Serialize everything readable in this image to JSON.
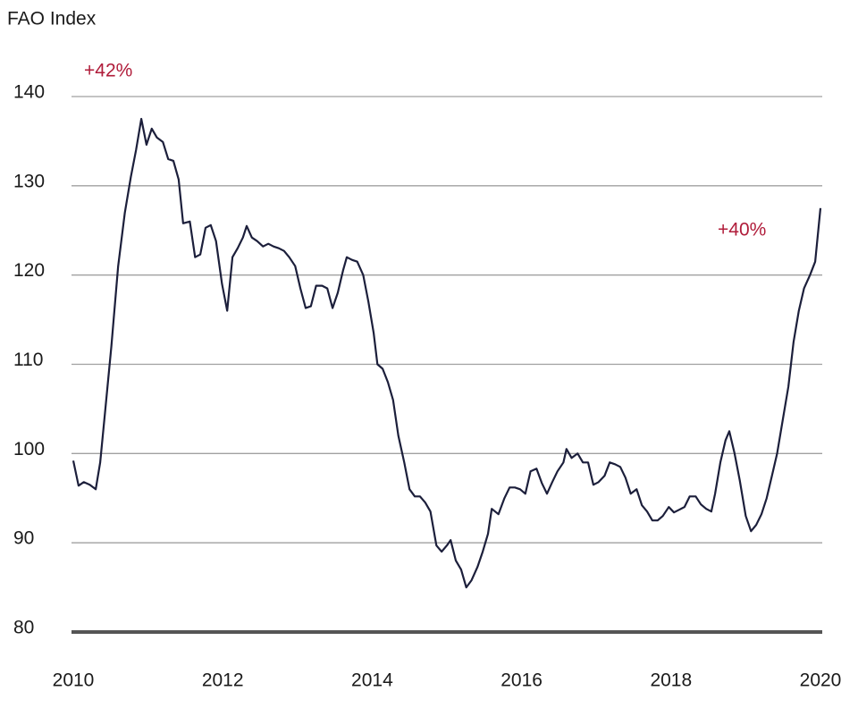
{
  "chart_data": {
    "type": "line",
    "y_axis_label": "FAO Index",
    "annotations": [
      "+42%",
      "+40%"
    ],
    "xlim": [
      2010,
      2020
    ],
    "xticks": [
      2010,
      2012,
      2014,
      2016,
      2018,
      2020
    ],
    "ylim": [
      80,
      140
    ],
    "yticks": [
      80,
      90,
      100,
      110,
      120,
      130,
      140
    ],
    "grid": true,
    "x": [
      2010.0,
      2010.07,
      2010.14,
      2010.22,
      2010.3,
      2010.36,
      2010.43,
      2010.51,
      2010.6,
      2010.69,
      2010.77,
      2010.84,
      2010.91,
      2010.98,
      2011.05,
      2011.12,
      2011.2,
      2011.27,
      2011.34,
      2011.41,
      2011.47,
      2011.56,
      2011.63,
      2011.7,
      2011.77,
      2011.84,
      2011.91,
      2011.99,
      2012.06,
      2012.13,
      2012.2,
      2012.27,
      2012.32,
      2012.39,
      2012.46,
      2012.54,
      2012.61,
      2012.68,
      2012.75,
      2012.82,
      2012.89,
      2012.97,
      2013.04,
      2013.11,
      2013.18,
      2013.25,
      2013.33,
      2013.4,
      2013.47,
      2013.54,
      2013.61,
      2013.66,
      2013.73,
      2013.8,
      2013.88,
      2013.95,
      2014.02,
      2014.07,
      2014.14,
      2014.21,
      2014.28,
      2014.35,
      2014.43,
      2014.5,
      2014.57,
      2014.64,
      2014.71,
      2014.78,
      2014.86,
      2014.93,
      2015.0,
      2015.05,
      2015.12,
      2015.19,
      2015.26,
      2015.33,
      2015.41,
      2015.48,
      2015.55,
      2015.6,
      2015.69,
      2015.77,
      2015.84,
      2015.91,
      2015.98,
      2016.05,
      2016.12,
      2016.2,
      2016.27,
      2016.34,
      2016.41,
      2016.48,
      2016.56,
      2016.6,
      2016.67,
      2016.75,
      2016.82,
      2016.89,
      2016.96,
      2017.03,
      2017.11,
      2017.18,
      2017.25,
      2017.32,
      2017.39,
      2017.46,
      2017.54,
      2017.61,
      2017.68,
      2017.75,
      2017.82,
      2017.89,
      2017.97,
      2018.04,
      2018.11,
      2018.18,
      2018.25,
      2018.33,
      2018.4,
      2018.47,
      2018.54,
      2018.59,
      2018.66,
      2018.73,
      2018.78,
      2018.85,
      2018.92,
      2019.0,
      2019.07,
      2019.14,
      2019.21,
      2019.28,
      2019.35,
      2019.42,
      2019.5,
      2019.57,
      2019.64,
      2019.71,
      2019.78,
      2019.86,
      2019.93,
      2020.0
    ],
    "series": [
      {
        "name": "FAO Index",
        "color": "#1c1f3b",
        "values": [
          99.2,
          96.4,
          96.8,
          96.5,
          96.0,
          99.0,
          105.0,
          112.0,
          121.0,
          127.0,
          131.0,
          134.0,
          137.5,
          134.6,
          136.4,
          135.4,
          134.9,
          133.0,
          132.8,
          130.7,
          125.8,
          126.0,
          122.0,
          122.3,
          125.3,
          125.6,
          123.8,
          119.0,
          116.0,
          122.0,
          123.0,
          124.2,
          125.5,
          124.2,
          123.8,
          123.2,
          123.5,
          123.2,
          123.0,
          122.7,
          122.0,
          121.0,
          118.5,
          116.3,
          116.5,
          118.8,
          118.8,
          118.5,
          116.3,
          118.0,
          120.5,
          122.0,
          121.7,
          121.5,
          120.0,
          117.0,
          113.5,
          110.0,
          109.5,
          108.0,
          106.0,
          102.0,
          99.0,
          96.0,
          95.2,
          95.2,
          94.5,
          93.5,
          89.7,
          89.0,
          89.7,
          90.3,
          88.0,
          87.0,
          85.0,
          85.8,
          87.3,
          89.0,
          91.0,
          93.8,
          93.2,
          95.0,
          96.2,
          96.2,
          96.0,
          95.5,
          98.0,
          98.3,
          96.7,
          95.5,
          96.8,
          98.0,
          99.0,
          100.5,
          99.5,
          100.0,
          99.0,
          99.0,
          96.5,
          96.8,
          97.5,
          99.0,
          98.8,
          98.5,
          97.3,
          95.5,
          96.0,
          94.2,
          93.5,
          92.5,
          92.5,
          93.0,
          94.0,
          93.4,
          93.7,
          94.0,
          95.2,
          95.2,
          94.3,
          93.8,
          93.5,
          95.5,
          99.0,
          101.5,
          102.5,
          100.0,
          97.0,
          93.0,
          91.3,
          92.0,
          93.2,
          95.0,
          97.5,
          100.0,
          104.0,
          107.5,
          112.5,
          116.0,
          118.5,
          120.0,
          121.5,
          127.5
        ]
      }
    ]
  }
}
